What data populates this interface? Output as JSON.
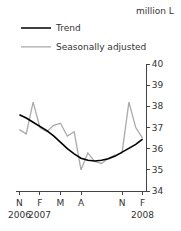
{
  "chart_data": {
    "type": "line",
    "ylabel": "million L",
    "categories": [
      "N",
      null,
      null,
      "F",
      null,
      null,
      "M",
      null,
      null,
      "A",
      null,
      null,
      null,
      null,
      null,
      "N",
      null,
      null,
      "F"
    ],
    "series": [
      {
        "name": "Seasonally adjusted",
        "color": "#aaaaaa",
        "values": [
          36.9,
          36.7,
          38.2,
          37.0,
          36.8,
          37.1,
          37.2,
          36.6,
          36.8,
          35.0,
          35.8,
          35.4,
          35.3,
          35.55,
          35.7,
          35.8,
          38.2,
          37.0,
          36.5
        ]
      },
      {
        "name": "Trend",
        "color": "#000000",
        "values": [
          37.6,
          37.45,
          37.25,
          37.05,
          36.85,
          36.6,
          36.3,
          36.0,
          35.75,
          35.55,
          35.45,
          35.42,
          35.45,
          35.52,
          35.65,
          35.82,
          36.0,
          36.2,
          36.45
        ]
      }
    ],
    "ylim": [
      34,
      40
    ],
    "yticks": [
      34,
      35,
      36,
      37,
      38,
      39,
      40
    ],
    "grid": false,
    "legend": "upper left",
    "annotations": [
      {
        "text": "2006",
        "x": 0
      },
      {
        "text": "2007",
        "x": 3
      },
      {
        "text": "2008",
        "x": 18
      }
    ]
  }
}
